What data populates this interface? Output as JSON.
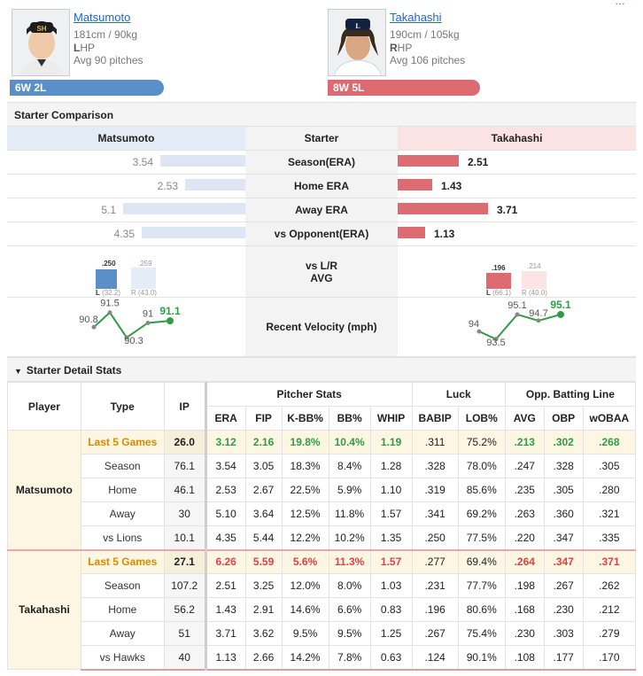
{
  "top_link": "…",
  "players": {
    "left": {
      "name": "Matsumoto",
      "height_weight": "181cm / 90kg",
      "hand_letter": "L",
      "hand_rest": "HP",
      "avg_pitches": "Avg 90 pitches",
      "record": "6W 2L",
      "color": "#5b8fc7"
    },
    "right": {
      "name": "Takahashi",
      "height_weight": "190cm / 105kg",
      "hand_letter": "R",
      "hand_rest": "HP",
      "avg_pitches": "Avg 106 pitches",
      "record": "8W 5L",
      "color": "#dc6a70"
    }
  },
  "comparison": {
    "section_title": "Starter Comparison",
    "header": {
      "left": "Matsumoto",
      "mid": "Starter",
      "right": "Takahashi"
    },
    "rows": [
      {
        "label": "Season(ERA)",
        "left": "3.54",
        "right": "2.51",
        "left_val": 3.54,
        "right_val": 2.51
      },
      {
        "label": "Home ERA",
        "left": "2.53",
        "right": "1.43",
        "left_val": 2.53,
        "right_val": 1.43
      },
      {
        "label": "Away ERA",
        "left": "5.1",
        "right": "3.71",
        "left_val": 5.1,
        "right_val": 3.71
      },
      {
        "label": "vs Opponent(ERA)",
        "left": "4.35",
        "right": "1.13",
        "left_val": 4.35,
        "right_val": 1.13
      }
    ],
    "lr": {
      "label1": "vs L/R",
      "label2": "AVG",
      "left": {
        "l_val": ".250",
        "r_val": ".259",
        "l_lbl": "L",
        "l_ip": "(32.2)",
        "r_lbl": "R",
        "r_ip": "(43.0)"
      },
      "right": {
        "l_val": ".196",
        "r_val": ".214",
        "l_lbl": "L",
        "l_ip": "(66.1)",
        "r_lbl": "R",
        "r_ip": "(40.0)"
      }
    },
    "velocity": {
      "label": "Recent Velocity (mph)",
      "left": [
        "90.8",
        "91.5",
        "90.3",
        "91",
        "91.1"
      ],
      "right": [
        "94",
        "93.5",
        "95.1",
        "94.7",
        "95.1"
      ]
    }
  },
  "detail": {
    "section_title": "Starter Detail Stats",
    "headers": {
      "player": "Player",
      "type": "Type",
      "ip": "IP",
      "pitcher_stats": "Pitcher Stats",
      "luck": "Luck",
      "opp": "Opp. Batting Line",
      "cols": [
        "ERA",
        "FIP",
        "K-BB%",
        "BB%",
        "WHIP",
        "BABIP",
        "LOB%",
        "AVG",
        "OBP",
        "wOBAA"
      ]
    },
    "matsumoto": {
      "name": "Matsumoto",
      "rows": [
        {
          "type": "Last 5 Games",
          "ip": "26.0",
          "vals": [
            "3.12",
            "2.16",
            "19.8%",
            "10.4%",
            "1.19",
            ".311",
            "75.2%",
            ".213",
            ".302",
            ".268"
          ]
        },
        {
          "type": "Season",
          "ip": "76.1",
          "vals": [
            "3.54",
            "3.05",
            "18.3%",
            "8.4%",
            "1.28",
            ".328",
            "78.0%",
            ".247",
            ".328",
            ".305"
          ]
        },
        {
          "type": "Home",
          "ip": "46.1",
          "vals": [
            "2.53",
            "2.67",
            "22.5%",
            "5.9%",
            "1.10",
            ".319",
            "85.6%",
            ".235",
            ".305",
            ".280"
          ]
        },
        {
          "type": "Away",
          "ip": "30",
          "vals": [
            "5.10",
            "3.64",
            "12.5%",
            "11.8%",
            "1.57",
            ".341",
            "69.2%",
            ".263",
            ".360",
            ".321"
          ]
        },
        {
          "type": "vs Lions",
          "ip": "10.1",
          "vals": [
            "4.35",
            "5.44",
            "12.2%",
            "10.2%",
            "1.35",
            ".250",
            "77.5%",
            ".220",
            ".347",
            ".335"
          ]
        }
      ]
    },
    "takahashi": {
      "name": "Takahashi",
      "rows": [
        {
          "type": "Last 5 Games",
          "ip": "27.1",
          "vals": [
            "6.26",
            "5.59",
            "5.6%",
            "11.3%",
            "1.57",
            ".277",
            "69.4%",
            ".264",
            ".347",
            ".371"
          ]
        },
        {
          "type": "Season",
          "ip": "107.2",
          "vals": [
            "2.51",
            "3.25",
            "12.0%",
            "8.0%",
            "1.03",
            ".231",
            "77.7%",
            ".198",
            ".267",
            ".262"
          ]
        },
        {
          "type": "Home",
          "ip": "56.2",
          "vals": [
            "1.43",
            "2.91",
            "14.6%",
            "6.6%",
            "0.83",
            ".196",
            "80.6%",
            ".168",
            ".230",
            ".212"
          ]
        },
        {
          "type": "Away",
          "ip": "51",
          "vals": [
            "3.71",
            "3.62",
            "9.5%",
            "9.5%",
            "1.25",
            ".267",
            "75.4%",
            ".230",
            ".303",
            ".279"
          ]
        },
        {
          "type": "vs Hawks",
          "ip": "40",
          "vals": [
            "1.13",
            "2.66",
            "14.2%",
            "7.8%",
            "0.63",
            ".124",
            "90.1%",
            ".108",
            ".177",
            ".170"
          ]
        }
      ]
    }
  }
}
